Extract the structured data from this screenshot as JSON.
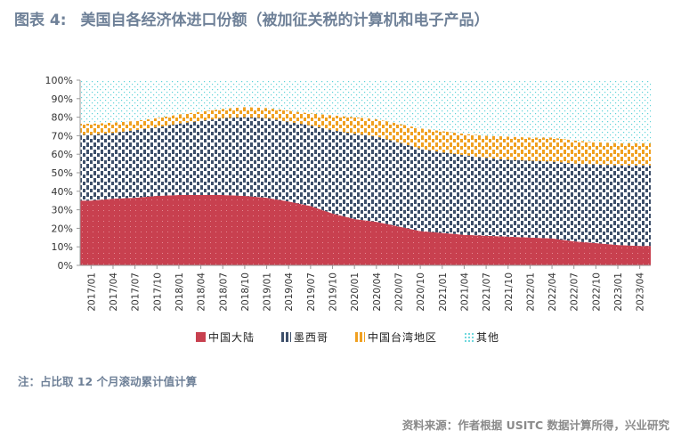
{
  "header": {
    "figure_number": "图表 4:",
    "title_text": "美国自各经济体进口份额（被加征关税的计算机和电子产品）"
  },
  "note": "注：占比取 12 个月滚动累计值计算",
  "source": "资料来源：作者根据 USITC 数据计算所得，兴业研究",
  "colors": {
    "china": "#c8404f",
    "mexico": "#3d4f6a",
    "taiwan": "#f0a020",
    "other": "#5cd2d8",
    "title": "#6f8198"
  },
  "chart_data": {
    "type": "area",
    "stacked": true,
    "title": "美国自各经济体进口份额（被加征关税的计算机和电子产品）",
    "ylim": [
      0,
      100
    ],
    "y_ticks": [
      "0%",
      "10%",
      "20%",
      "30%",
      "40%",
      "50%",
      "60%",
      "70%",
      "80%",
      "90%",
      "100%"
    ],
    "x_tick_labels": [
      "2017/01",
      "2017/04",
      "2017/07",
      "2017/10",
      "2018/01",
      "2018/04",
      "2018/07",
      "2018/10",
      "2019/01",
      "2019/04",
      "2019/07",
      "2019/10",
      "2020/01",
      "2020/04",
      "2020/07",
      "2020/10",
      "2021/01",
      "2021/04",
      "2021/07",
      "2021/10",
      "2022/01",
      "2022/04",
      "2022/07",
      "2022/10",
      "2023/01",
      "2023/04"
    ],
    "series": [
      {
        "name": "中国大陆",
        "color_key": "china",
        "values": [
          35,
          36,
          36.5,
          37.5,
          38,
          38,
          38,
          37.5,
          36.5,
          34.5,
          32,
          28,
          25,
          23.5,
          21,
          18.5,
          17.5,
          16.5,
          16,
          15.5,
          15,
          14.5,
          13,
          12,
          11,
          10.5
        ]
      },
      {
        "name": "墨西哥",
        "color_key": "mexico",
        "values": [
          35.5,
          35.5,
          36.5,
          37,
          38.5,
          40,
          41.5,
          42.5,
          43,
          43,
          43.5,
          45,
          46,
          46,
          45.5,
          44.5,
          43.5,
          43,
          42,
          41.5,
          41.5,
          41.5,
          42,
          42.5,
          43,
          43.5
        ]
      },
      {
        "name": "中国台湾地区",
        "color_key": "taiwan",
        "values": [
          6,
          5.5,
          5,
          5,
          5,
          5,
          5,
          5.5,
          5.5,
          6,
          6.5,
          8,
          9,
          9.5,
          10,
          11,
          11.5,
          11.5,
          12,
          12.5,
          12.5,
          13,
          12.5,
          12,
          12,
          12
        ]
      },
      {
        "name": "其他",
        "color_key": "other",
        "values": [
          23.5,
          23,
          22,
          20.5,
          18.5,
          17,
          15.5,
          14.5,
          15,
          16.5,
          18,
          19,
          20,
          21,
          23.5,
          26,
          27.5,
          29,
          30,
          30.5,
          31,
          31,
          32.5,
          33.5,
          34,
          34
        ]
      }
    ],
    "legend_position": "bottom"
  }
}
